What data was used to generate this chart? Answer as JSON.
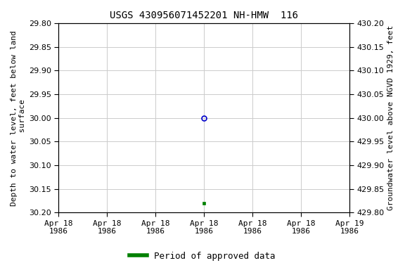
{
  "title": "USGS 430956071452201 NH-HMW  116",
  "ylabel_left": "Depth to water level, feet below land\n surface",
  "ylabel_right": "Groundwater level above NGVD 1929, feet",
  "ylim_left": [
    29.8,
    30.2
  ],
  "ylim_right_top": 430.2,
  "ylim_right_bottom": 429.8,
  "yticks_left": [
    29.8,
    29.85,
    29.9,
    29.95,
    30.0,
    30.05,
    30.1,
    30.15,
    30.2
  ],
  "yticks_right": [
    430.2,
    430.15,
    430.1,
    430.05,
    430.0,
    429.95,
    429.9,
    429.85,
    429.8
  ],
  "point_open_y": 30.0,
  "point_filled_y": 30.18,
  "point_x_hours": 12,
  "open_marker_color": "#0000cc",
  "filled_marker_color": "#008000",
  "background_color": "#ffffff",
  "grid_color": "#cccccc",
  "title_fontsize": 10,
  "tick_fontsize": 8,
  "label_fontsize": 8,
  "legend_label": "Period of approved data",
  "legend_color": "#008000",
  "xtick_labels": [
    "Apr 18\n1986",
    "Apr 18\n1986",
    "Apr 18\n1986",
    "Apr 18\n1986",
    "Apr 18\n1986",
    "Apr 18\n1986",
    "Apr 19\n1986"
  ],
  "xtick_positions_hours": [
    0,
    4,
    8,
    12,
    16,
    20,
    24
  ]
}
